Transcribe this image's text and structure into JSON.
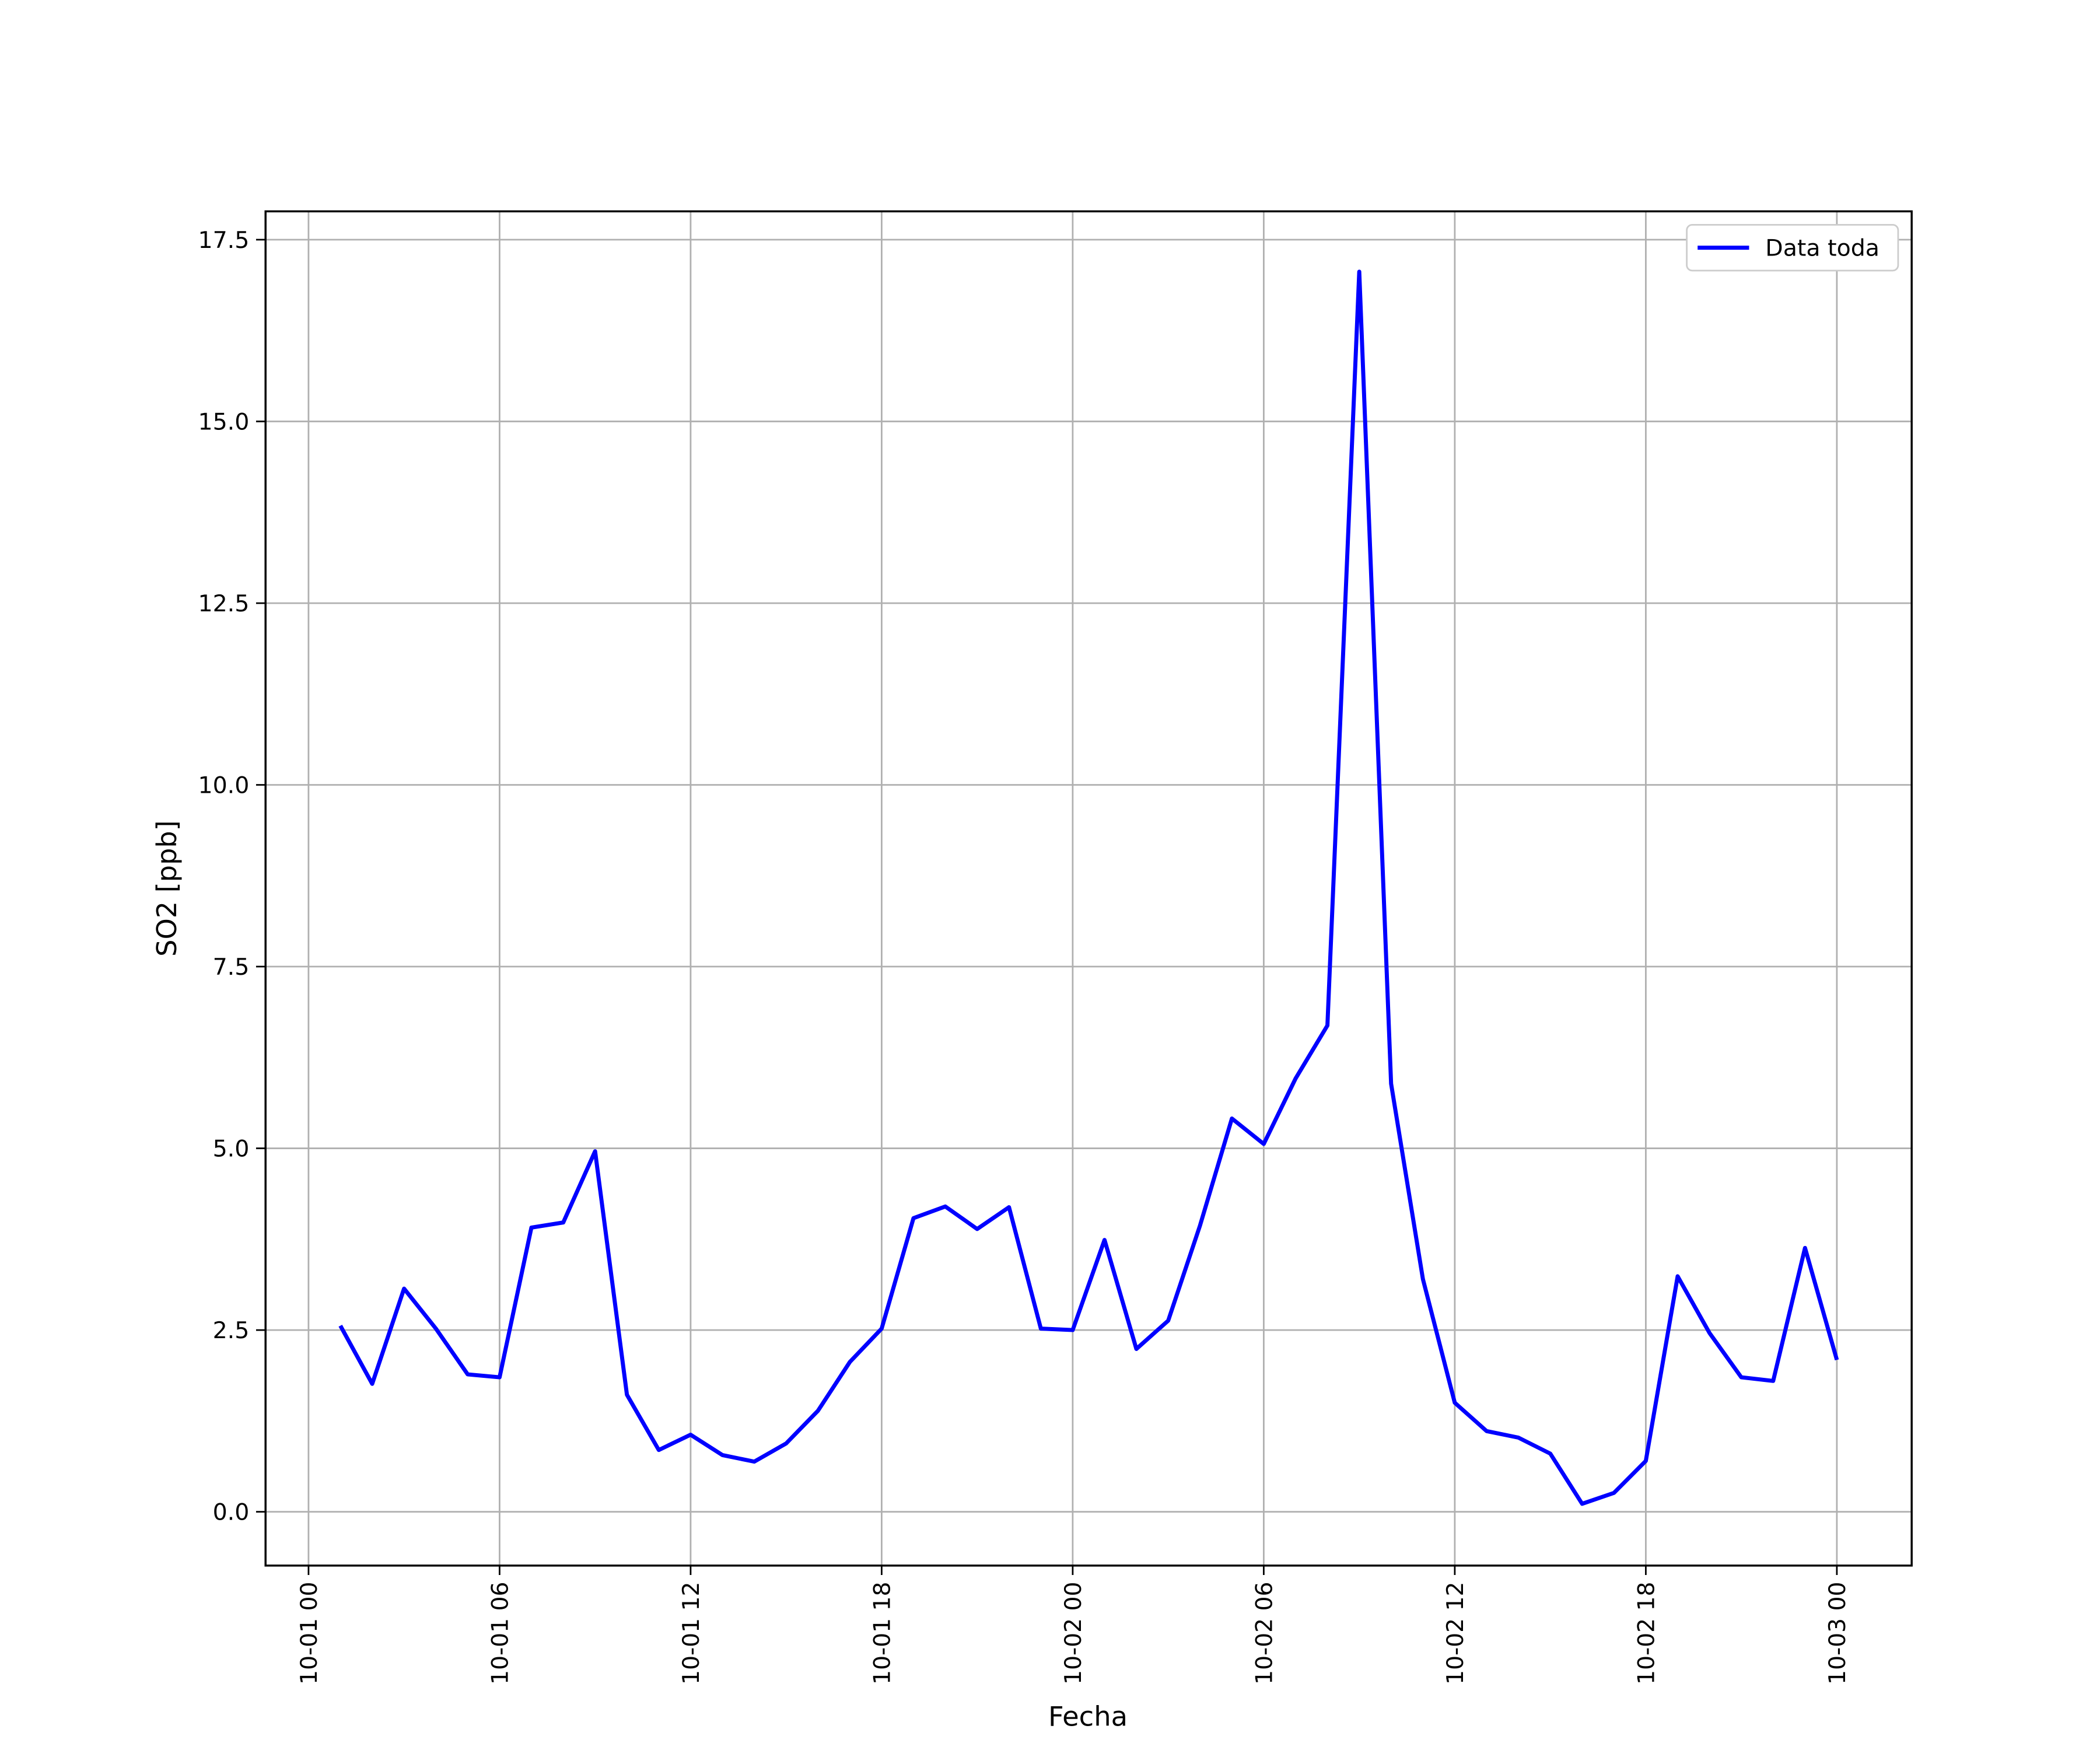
{
  "chart_data": {
    "type": "line",
    "xlabel": "Fecha",
    "ylabel": "SO2 [ppb]",
    "x": [
      1,
      2,
      3,
      4,
      5,
      6,
      7,
      8,
      9,
      10,
      11,
      12,
      13,
      14,
      15,
      16,
      17,
      18,
      19,
      20,
      21,
      22,
      23,
      24,
      25,
      26,
      27,
      28,
      29,
      30,
      31,
      32,
      33,
      34,
      35,
      36,
      37,
      38,
      39,
      40,
      41,
      42,
      43,
      44,
      45,
      46,
      47,
      48
    ],
    "series": [
      {
        "name": "Data toda",
        "color": "#0000ff",
        "values": [
          2.56,
          1.76,
          3.07,
          2.52,
          1.89,
          1.85,
          3.91,
          3.98,
          4.96,
          1.61,
          0.85,
          1.06,
          0.78,
          0.69,
          0.94,
          1.39,
          2.06,
          2.52,
          4.04,
          4.2,
          3.89,
          4.19,
          2.52,
          2.5,
          3.74,
          2.24,
          2.63,
          3.94,
          5.41,
          5.06,
          5.96,
          6.69,
          17.06,
          5.89,
          3.2,
          1.5,
          1.11,
          1.02,
          0.8,
          0.11,
          0.26,
          0.7,
          3.24,
          2.46,
          1.85,
          1.8,
          3.63,
          2.09
        ]
      }
    ],
    "xlim": [
      -1.35,
      50.35
    ],
    "xticks": [
      {
        "value": 0,
        "label": "10-01 00"
      },
      {
        "value": 6,
        "label": "10-01 06"
      },
      {
        "value": 12,
        "label": "10-01 12"
      },
      {
        "value": 18,
        "label": "10-01 18"
      },
      {
        "value": 24,
        "label": "10-02 00"
      },
      {
        "value": 30,
        "label": "10-02 06"
      },
      {
        "value": 36,
        "label": "10-02 12"
      },
      {
        "value": 42,
        "label": "10-02 18"
      },
      {
        "value": 48,
        "label": "10-03 00"
      }
    ],
    "ylim": [
      -0.74,
      17.89
    ],
    "yticks": [
      {
        "value": 0,
        "label": "0.0"
      },
      2.5,
      {
        "value": 5,
        "label": "5.0"
      },
      7.5,
      {
        "value": 10,
        "label": "10.0"
      },
      12.5,
      {
        "value": 15,
        "label": "15.0"
      },
      17.5
    ],
    "grid": true,
    "legend": "upper right"
  }
}
